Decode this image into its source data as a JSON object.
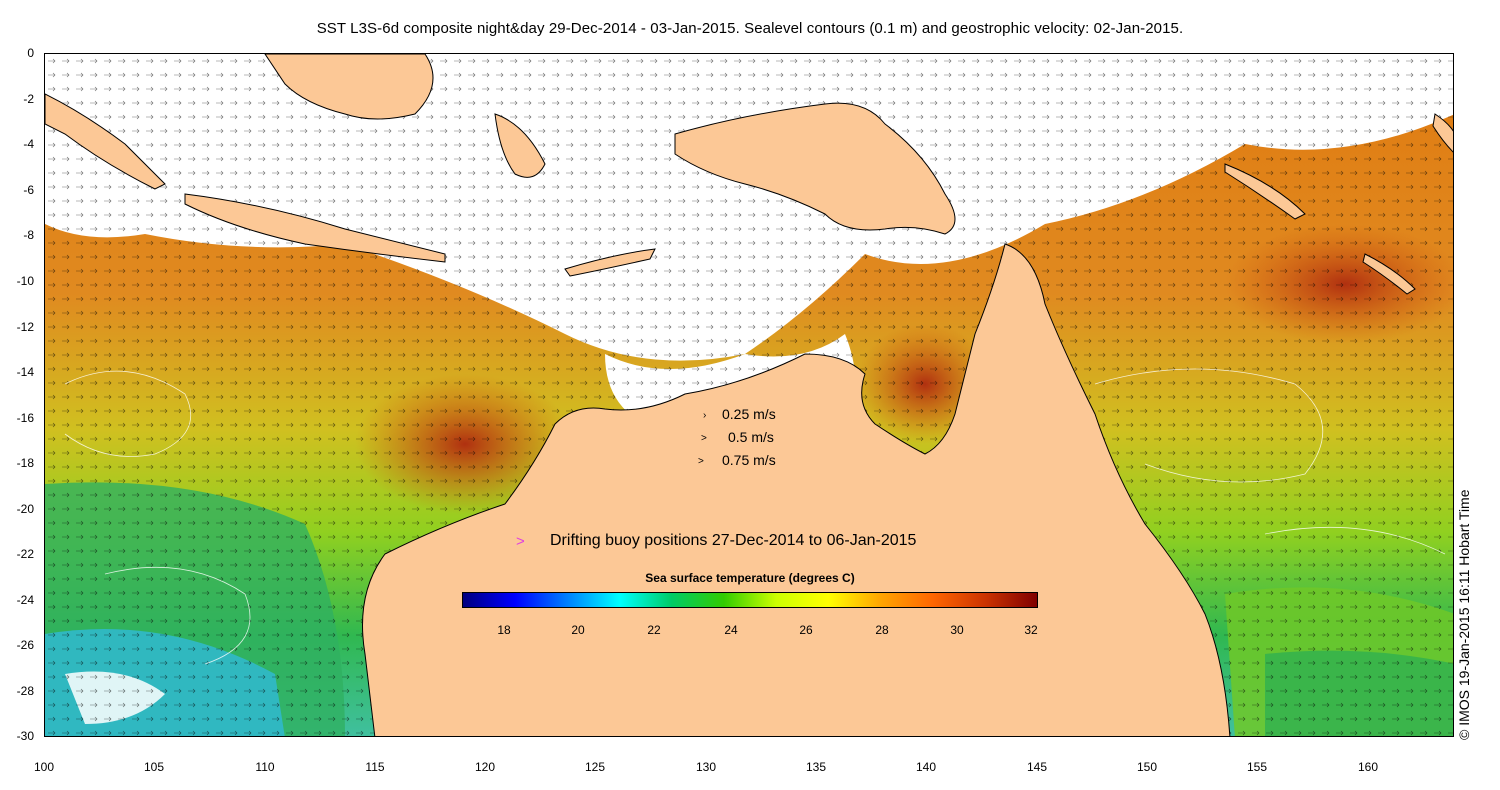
{
  "title": "SST L3S-6d composite night&day 29-Dec-2014 - 03-Jan-2015. Sealevel contours (0.1 m) and geostrophic velocity: 02-Jan-2015.",
  "axes": {
    "y_ticks": [
      "0",
      "-2",
      "-4",
      "-6",
      "-8",
      "-10",
      "-12",
      "-14",
      "-16",
      "-18",
      "-20",
      "-22",
      "-24",
      "-26",
      "-28",
      "-30"
    ],
    "x_ticks": [
      "100",
      "105",
      "110",
      "115",
      "120",
      "125",
      "130",
      "135",
      "140",
      "145",
      "150",
      "155",
      "160"
    ]
  },
  "velocity_legend": [
    "0.25 m/s",
    "0.5 m/s",
    "0.75 m/s"
  ],
  "buoy_legend": "Drifting buoy positions 27-Dec-2014 to 06-Jan-2015",
  "colorbar": {
    "title": "Sea surface temperature (degrees C)",
    "ticks": [
      "18",
      "20",
      "22",
      "24",
      "26",
      "28",
      "30",
      "32"
    ],
    "range": [
      17,
      32
    ],
    "colors": [
      "#00007f",
      "#0000ff",
      "#0080ff",
      "#00ffff",
      "#00cc66",
      "#33cc00",
      "#ccff00",
      "#ffff00",
      "#ffa500",
      "#ff6600",
      "#cc3300",
      "#7f0000"
    ]
  },
  "copyright": "© IMOS 19-Jan-2015 16:11 Hobart Time",
  "colors": {
    "land": "#fcc896",
    "cloud": "#ffffff",
    "buoy": "#e040e0"
  }
}
